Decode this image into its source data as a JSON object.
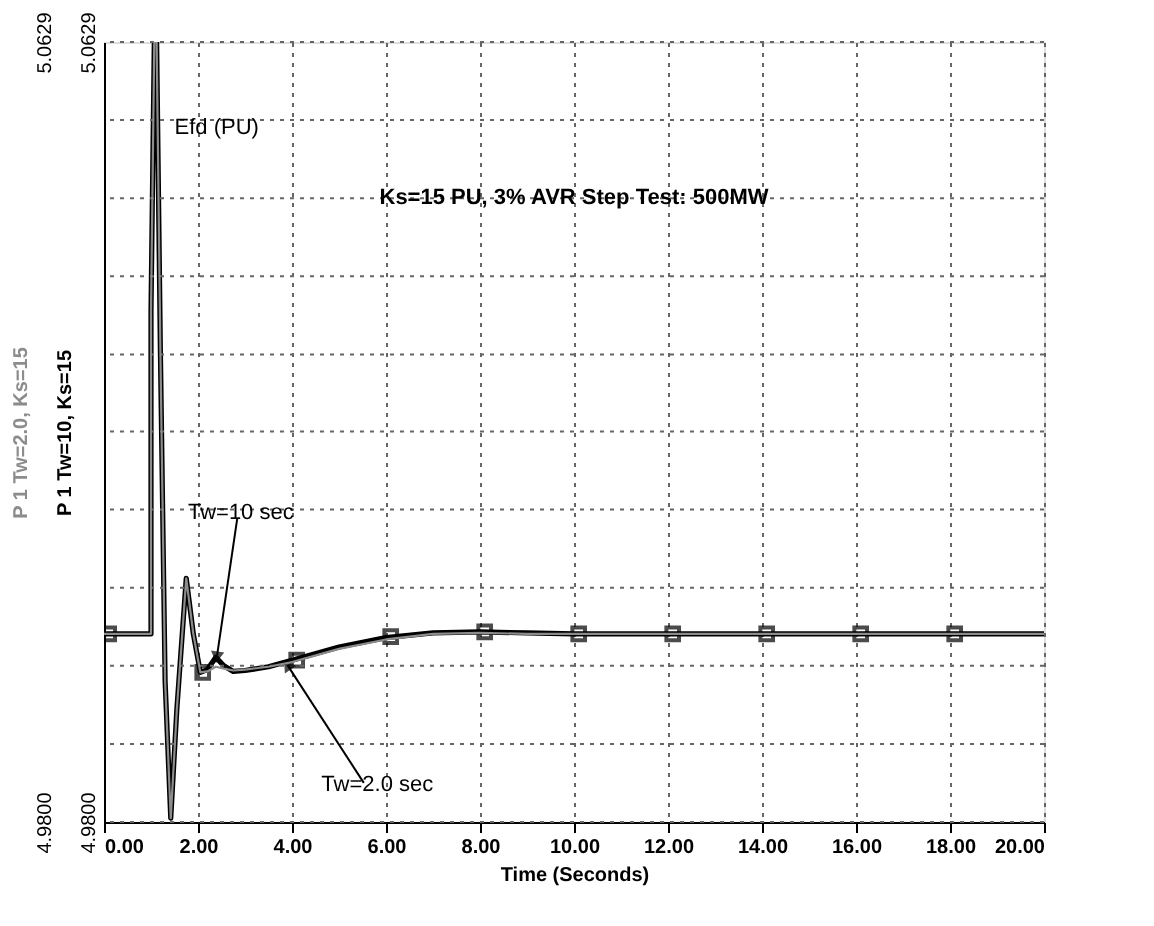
{
  "chart_data": {
    "type": "line",
    "xlabel": "Time (Seconds)",
    "xlim": [
      0,
      20
    ],
    "xticks": [
      {
        "value": 0,
        "label": "0.00"
      },
      {
        "value": 2,
        "label": "2.00"
      },
      {
        "value": 4,
        "label": "4.00"
      },
      {
        "value": 6,
        "label": "6.00"
      },
      {
        "value": 8,
        "label": "8.00"
      },
      {
        "value": 10,
        "label": "10.00"
      },
      {
        "value": 12,
        "label": "12.00"
      },
      {
        "value": 14,
        "label": "14.00"
      },
      {
        "value": 16,
        "label": "16.00"
      },
      {
        "value": 18,
        "label": "18.00"
      },
      {
        "value": 20,
        "label": "20.00"
      }
    ],
    "ylim": [
      4.98,
      5.0629
    ],
    "yticks": [
      {
        "value": 4.98,
        "label": "4.9800"
      },
      {
        "value": 4.9883,
        "label": null
      },
      {
        "value": 4.9966,
        "label": null
      },
      {
        "value": 5.0049,
        "label": null
      },
      {
        "value": 5.0132,
        "label": null
      },
      {
        "value": 5.0215,
        "label": null
      },
      {
        "value": 5.0297,
        "label": null
      },
      {
        "value": 5.038,
        "label": null
      },
      {
        "value": 5.0463,
        "label": null
      },
      {
        "value": 5.0546,
        "label": null
      },
      {
        "value": 5.0629,
        "label": "5.0629"
      }
    ],
    "y2lim": [
      4.98,
      5.0629
    ],
    "y2ticks": [
      {
        "value": 4.98,
        "label": "4.9800"
      },
      {
        "value": 5.0629,
        "label": "5.0629"
      }
    ],
    "grid": true,
    "line_style": "solid",
    "series": [
      {
        "name": "P 1 Tw=10, Ks=15",
        "color": "#000000",
        "x": [
          0,
          1.0,
          1.0,
          1.07,
          1.12,
          1.2,
          1.3,
          1.42,
          1.55,
          1.75,
          1.9,
          2.05,
          2.2,
          2.38,
          2.55,
          2.75,
          3.0,
          3.5,
          4.0,
          5.0,
          6.0,
          7.0,
          8.0,
          9.0,
          10.0,
          12.0,
          14.0,
          16.0,
          18.0,
          20.0
        ],
        "values": [
          5.0,
          5.0,
          5.0343,
          5.0629,
          5.0629,
          5.03,
          4.995,
          4.9804,
          4.992,
          5.0059,
          5.0,
          4.9959,
          4.9962,
          4.9975,
          4.9966,
          4.996,
          4.9961,
          4.9965,
          4.9972,
          4.9986,
          4.9996,
          5.0001,
          5.0002,
          5.0001,
          5.0,
          5.0,
          5.0,
          5.0,
          5.0,
          5.0
        ]
      },
      {
        "name": "P 1 Tw=2.0, Ks=15",
        "color": "#8c8c8c",
        "axis": "y2",
        "x": [
          0,
          1.0,
          1.0,
          1.07,
          1.12,
          1.2,
          1.3,
          1.42,
          1.55,
          1.75,
          1.9,
          2.05,
          2.2,
          2.38,
          2.55,
          2.75,
          3.0,
          3.5,
          4.0,
          5.0,
          6.0,
          7.0,
          8.0,
          9.0,
          10.0,
          12.0,
          14.0,
          16.0,
          18.0,
          20.0
        ],
        "values": [
          5.0,
          5.0,
          5.0343,
          5.0629,
          5.0629,
          5.03,
          4.995,
          4.9804,
          4.992,
          5.0059,
          5.0,
          4.9959,
          4.996,
          4.9965,
          4.9963,
          4.9961,
          4.9962,
          4.9965,
          4.997,
          4.9984,
          4.9994,
          5.0,
          5.0001,
          5.0,
          5.0,
          5.0,
          5.0,
          5.0,
          5.0,
          5.0
        ]
      },
      {
        "type": "scatter",
        "marker": "square",
        "color": "#000000",
        "x": [
          0.1,
          2.1,
          4.1,
          6.1,
          8.1,
          10.1,
          12.1,
          14.1,
          16.1,
          18.1
        ],
        "values": [
          5.0,
          4.9959,
          4.9972,
          4.9997,
          5.0002,
          5.0,
          5.0,
          5.0,
          5.0,
          5.0
        ]
      }
    ],
    "annotations": [
      "Efd (PU)",
      "Ks=15 PU, 3% AVR Step Test: 500MW",
      {
        "text": "Tw=10 sec",
        "x": 2.4,
        "y": 4.9975
      },
      {
        "text": "Tw=2.0 sec",
        "x": 3.9,
        "y": 4.9967
      }
    ]
  }
}
